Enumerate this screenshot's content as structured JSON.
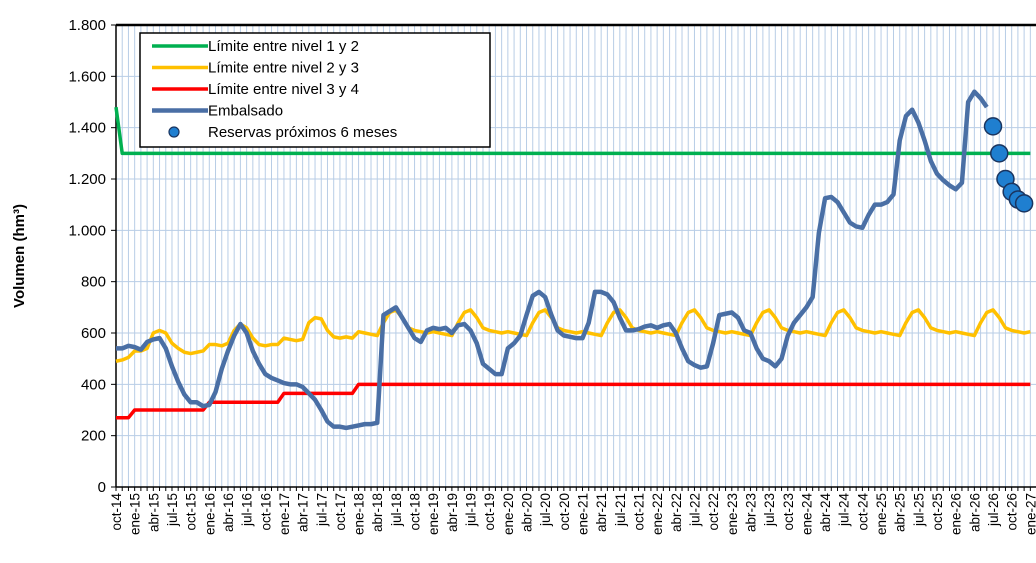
{
  "chart_data": {
    "type": "line",
    "y_label": "Volumen (hm³)",
    "ylim": [
      0,
      1800
    ],
    "yticks": [
      0,
      200,
      400,
      600,
      800,
      {
        "value": 1000,
        "label": "1.000"
      },
      {
        "value": 1200,
        "label": "1.200"
      },
      {
        "value": 1400,
        "label": "1.400"
      },
      {
        "value": 1600,
        "label": "1.600"
      },
      {
        "value": 1800,
        "label": "1.800"
      }
    ],
    "grid": true,
    "legend": "upper left",
    "categories": [
      "oct-14",
      null,
      null,
      "ene-15",
      null,
      null,
      "abr-15",
      null,
      null,
      "jul-15",
      null,
      null,
      "oct-15",
      null,
      null,
      "ene-16",
      null,
      null,
      "abr-16",
      null,
      null,
      "jul-16",
      null,
      null,
      "oct-16",
      null,
      null,
      "ene-17",
      null,
      null,
      "abr-17",
      null,
      null,
      "jul-17",
      null,
      null,
      "oct-17",
      null,
      null,
      "ene-18",
      null,
      null,
      "abr-18",
      null,
      null,
      "jul-18",
      null,
      null,
      "oct-18",
      null,
      null,
      "ene-19",
      null,
      null,
      "abr-19",
      null,
      null,
      "jul-19",
      null,
      null,
      "oct-19",
      null,
      null,
      "ene-20",
      null,
      null,
      "abr-20",
      null,
      null,
      "jul-20",
      null,
      null,
      "oct-20",
      null,
      null,
      "ene-21",
      null,
      null,
      "abr-21",
      null,
      null,
      "jul-21",
      null,
      null,
      "oct-21",
      null,
      null,
      "ene-22",
      null,
      null,
      "abr-22",
      null,
      null,
      "jul-22",
      null,
      null,
      "oct-22",
      null,
      null,
      "ene-23",
      null,
      null,
      "abr-23",
      null,
      null,
      "jul-23",
      null,
      null,
      "oct-23",
      null,
      null,
      "ene-24",
      null,
      null,
      "abr-24",
      null,
      null,
      "jul-24",
      null,
      null,
      "oct-24",
      null,
      null,
      "ene-25",
      null,
      null,
      "abr-25",
      null,
      null,
      "jul-25",
      null,
      null,
      "oct-25",
      null,
      null,
      "ene-26",
      null,
      null,
      "abr-26",
      null,
      null,
      "jul-26",
      null,
      null,
      "oct-26",
      null,
      null,
      "ene-27"
    ],
    "series": [
      {
        "name": "Límite entre nivel 1 y 2",
        "type": "line",
        "color": "#00b050",
        "values": [
          1480,
          1300,
          1300,
          1300,
          1300,
          1300,
          1300,
          1300,
          1300,
          1300,
          1300,
          1300,
          1300,
          1300,
          1300,
          1300,
          1300,
          1300,
          1300,
          1300,
          1300,
          1300,
          1300,
          1300,
          1300,
          1300,
          1300,
          1300,
          1300,
          1300,
          1300,
          1300,
          1300,
          1300,
          1300,
          1300,
          1300,
          1300,
          1300,
          1300,
          1300,
          1300,
          1300,
          1300,
          1300,
          1300,
          1300,
          1300,
          1300,
          1300,
          1300,
          1300,
          1300,
          1300,
          1300,
          1300,
          1300,
          1300,
          1300,
          1300,
          1300,
          1300,
          1300,
          1300,
          1300,
          1300,
          1300,
          1300,
          1300,
          1300,
          1300,
          1300,
          1300,
          1300,
          1300,
          1300,
          1300,
          1300,
          1300,
          1300,
          1300,
          1300,
          1300,
          1300,
          1300,
          1300,
          1300,
          1300,
          1300,
          1300,
          1300,
          1300,
          1300,
          1300,
          1300,
          1300,
          1300,
          1300,
          1300,
          1300,
          1300,
          1300,
          1300,
          1300,
          1300,
          1300,
          1300,
          1300,
          1300,
          1300,
          1300,
          1300,
          1300,
          1300,
          1300,
          1300,
          1300,
          1300,
          1300,
          1300,
          1300,
          1300,
          1300,
          1300,
          1300,
          1300,
          1300,
          1300,
          1300,
          1300,
          1300,
          1300,
          1300,
          1300,
          1300,
          1300,
          1300,
          1300,
          1300,
          1300,
          1300,
          1300,
          1300,
          1300,
          1300,
          1300,
          1300,
          1300
        ]
      },
      {
        "name": "Límite entre nivel 2 y 3",
        "type": "line",
        "color": "#ffc000",
        "values": [
          490,
          495,
          505,
          530,
          530,
          540,
          600,
          610,
          600,
          560,
          540,
          525,
          520,
          525,
          530,
          555,
          555,
          550,
          560,
          610,
          635,
          620,
          580,
          555,
          550,
          555,
          555,
          580,
          575,
          570,
          575,
          640,
          660,
          655,
          610,
          585,
          580,
          585,
          580,
          605,
          600,
          595,
          590,
          640,
          680,
          690,
          660,
          620,
          610,
          605,
          600,
          605,
          600,
          595,
          590,
          640,
          680,
          690,
          660,
          620,
          610,
          605,
          600,
          605,
          600,
          595,
          590,
          640,
          680,
          690,
          660,
          620,
          610,
          605,
          600,
          605,
          600,
          595,
          590,
          640,
          680,
          690,
          660,
          620,
          610,
          605,
          600,
          605,
          600,
          595,
          590,
          640,
          680,
          690,
          660,
          620,
          610,
          605,
          600,
          605,
          600,
          595,
          590,
          640,
          680,
          690,
          660,
          620,
          610,
          605,
          600,
          605,
          600,
          595,
          590,
          640,
          680,
          690,
          660,
          620,
          610,
          605,
          600,
          605,
          600,
          595,
          590,
          640,
          680,
          690,
          660,
          620,
          610,
          605,
          600,
          605,
          600,
          595,
          590,
          640,
          680,
          690,
          660,
          620,
          610,
          605,
          600,
          605
        ]
      },
      {
        "name": "Límite entre nivel 3 y 4",
        "type": "line",
        "color": "#ff0000",
        "values": [
          270,
          270,
          270,
          300,
          300,
          300,
          300,
          300,
          300,
          300,
          300,
          300,
          300,
          300,
          300,
          330,
          330,
          330,
          330,
          330,
          330,
          330,
          330,
          330,
          330,
          330,
          330,
          365,
          365,
          365,
          365,
          365,
          365,
          365,
          365,
          365,
          365,
          365,
          365,
          400,
          400,
          400,
          400,
          400,
          400,
          400,
          400,
          400,
          400,
          400,
          400,
          400,
          400,
          400,
          400,
          400,
          400,
          400,
          400,
          400,
          400,
          400,
          400,
          400,
          400,
          400,
          400,
          400,
          400,
          400,
          400,
          400,
          400,
          400,
          400,
          400,
          400,
          400,
          400,
          400,
          400,
          400,
          400,
          400,
          400,
          400,
          400,
          400,
          400,
          400,
          400,
          400,
          400,
          400,
          400,
          400,
          400,
          400,
          400,
          400,
          400,
          400,
          400,
          400,
          400,
          400,
          400,
          400,
          400,
          400,
          400,
          400,
          400,
          400,
          400,
          400,
          400,
          400,
          400,
          400,
          400,
          400,
          400,
          400,
          400,
          400,
          400,
          400,
          400,
          400,
          400,
          400,
          400,
          400,
          400,
          400,
          400,
          400,
          400,
          400,
          400,
          400,
          400,
          400,
          400,
          400,
          400,
          400
        ]
      },
      {
        "name": "Embalsado",
        "type": "line",
        "color": "#4a6fa5",
        "values": [
          540,
          540,
          550,
          545,
          535,
          565,
          575,
          580,
          540,
          470,
          410,
          360,
          330,
          330,
          315,
          320,
          370,
          460,
          530,
          590,
          635,
          600,
          530,
          480,
          440,
          425,
          415,
          405,
          400,
          400,
          390,
          365,
          340,
          300,
          255,
          235,
          235,
          230,
          235,
          240,
          245,
          245,
          250,
          670,
          685,
          700,
          660,
          620,
          580,
          565,
          610,
          620,
          615,
          620,
          600,
          630,
          635,
          610,
          560,
          480,
          460,
          440,
          440,
          540,
          560,
          590,
          670,
          745,
          760,
          740,
          670,
          610,
          590,
          585,
          580,
          580,
          640,
          760,
          760,
          750,
          720,
          660,
          610,
          610,
          615,
          625,
          630,
          620,
          630,
          635,
          600,
          540,
          490,
          475,
          465,
          470,
          560,
          670,
          675,
          680,
          660,
          610,
          600,
          540,
          500,
          490,
          470,
          500,
          590,
          640,
          670,
          700,
          740,
          990,
          1125,
          1130,
          1110,
          1070,
          1030,
          1015,
          1010,
          1060,
          1100,
          1100,
          1110,
          1140,
          1350,
          1445,
          1470,
          1420,
          1350,
          1270,
          1220,
          1195,
          1175,
          1160,
          1185,
          1500,
          1540,
          1515,
          1480,
          null,
          null,
          null,
          null,
          null,
          null,
          null
        ]
      },
      {
        "name": "Reservas próximos 6 meses",
        "type": "scatter",
        "color": "#1f7fd0",
        "values": [
          null,
          null,
          null,
          null,
          null,
          null,
          null,
          null,
          null,
          null,
          null,
          null,
          null,
          null,
          null,
          null,
          null,
          null,
          null,
          null,
          null,
          null,
          null,
          null,
          null,
          null,
          null,
          null,
          null,
          null,
          null,
          null,
          null,
          null,
          null,
          null,
          null,
          null,
          null,
          null,
          null,
          null,
          null,
          null,
          null,
          null,
          null,
          null,
          null,
          null,
          null,
          null,
          null,
          null,
          null,
          null,
          null,
          null,
          null,
          null,
          null,
          null,
          null,
          null,
          null,
          null,
          null,
          null,
          null,
          null,
          null,
          null,
          null,
          null,
          null,
          null,
          null,
          null,
          null,
          null,
          null,
          null,
          null,
          null,
          null,
          null,
          null,
          null,
          null,
          null,
          null,
          null,
          null,
          null,
          null,
          null,
          null,
          null,
          null,
          null,
          null,
          null,
          null,
          null,
          null,
          null,
          null,
          null,
          null,
          null,
          null,
          null,
          null,
          null,
          null,
          null,
          null,
          null,
          null,
          null,
          null,
          null,
          null,
          null,
          null,
          null,
          null,
          null,
          null,
          null,
          null,
          null,
          null,
          null,
          null,
          null,
          null,
          null,
          null,
          null,
          null,
          1405,
          1300,
          1200,
          1150,
          1120,
          1105,
          null
        ]
      }
    ]
  }
}
